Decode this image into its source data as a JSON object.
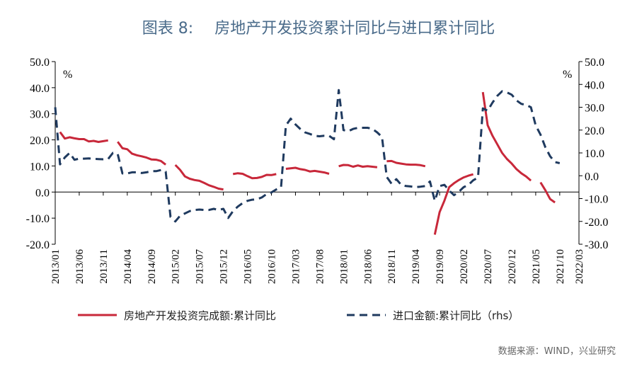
{
  "header": {
    "figure_no": "图表 8:",
    "title": "房地产开发投资累计同比与进口累计同比"
  },
  "source": "数据来源：WIND，兴业研究",
  "colors": {
    "series1": "#c8283a",
    "series2": "#1f3a5f"
  },
  "chart_data": {
    "type": "line",
    "title": "房地产开发投资累计同比与进口累计同比",
    "x_tick_labels": [
      "2013/01",
      "2013/06",
      "2013/11",
      "2014/04",
      "2014/09",
      "2015/02",
      "2015/07",
      "2015/12",
      "2016/05",
      "2016/10",
      "2017/03",
      "2017/08",
      "2018/01",
      "2018/06",
      "2018/11",
      "2019/04",
      "2019/09",
      "2020/02",
      "2020/07",
      "2020/12",
      "2021/05",
      "2021/10",
      "2022/03"
    ],
    "left_axis": {
      "unit": "%",
      "ylim": [
        -20,
        50
      ],
      "ticks": [
        "50.0",
        "40.0",
        "30.0",
        "20.0",
        "10.0",
        "0.0",
        "-10.0",
        "-20.0"
      ]
    },
    "right_axis": {
      "unit": "%",
      "ylim": [
        -30,
        50
      ],
      "ticks": [
        "50.0",
        "40.0",
        "30.0",
        "20.0",
        "10.0",
        "0.0",
        "-10.0",
        "-20.0",
        "-30.0"
      ]
    },
    "series": [
      {
        "name": "房地产开发投资完成额:累计同比",
        "axis": "left",
        "style": "solid",
        "data": [
          [
            0,
            null
          ],
          [
            1,
            23.0
          ],
          [
            2,
            20.5
          ],
          [
            3,
            21.0
          ],
          [
            4,
            20.6
          ],
          [
            5,
            20.3
          ],
          [
            6,
            20.3
          ],
          [
            7,
            19.4
          ],
          [
            8,
            19.6
          ],
          [
            9,
            19.2
          ],
          [
            10,
            19.5
          ],
          [
            11,
            19.8
          ],
          [
            12,
            null
          ],
          [
            13,
            19.3
          ],
          [
            14,
            16.8
          ],
          [
            15,
            16.4
          ],
          [
            16,
            14.7
          ],
          [
            17,
            14.1
          ],
          [
            18,
            13.7
          ],
          [
            19,
            13.2
          ],
          [
            20,
            12.5
          ],
          [
            21,
            12.4
          ],
          [
            22,
            11.9
          ],
          [
            23,
            10.5
          ],
          [
            24,
            null
          ],
          [
            25,
            10.4
          ],
          [
            26,
            8.5
          ],
          [
            27,
            6.0
          ],
          [
            28,
            5.1
          ],
          [
            29,
            4.6
          ],
          [
            30,
            4.3
          ],
          [
            31,
            3.5
          ],
          [
            32,
            2.6
          ],
          [
            33,
            2.0
          ],
          [
            34,
            1.3
          ],
          [
            35,
            1.0
          ],
          [
            36,
            null
          ],
          [
            37,
            6.9
          ],
          [
            38,
            7.2
          ],
          [
            39,
            7.0
          ],
          [
            40,
            6.1
          ],
          [
            41,
            5.3
          ],
          [
            42,
            5.4
          ],
          [
            43,
            5.8
          ],
          [
            44,
            6.6
          ],
          [
            45,
            6.5
          ],
          [
            46,
            6.9
          ],
          [
            47,
            null
          ],
          [
            48,
            8.9
          ],
          [
            49,
            9.1
          ],
          [
            50,
            9.3
          ],
          [
            51,
            8.8
          ],
          [
            52,
            8.5
          ],
          [
            53,
            7.9
          ],
          [
            54,
            8.1
          ],
          [
            55,
            7.8
          ],
          [
            56,
            7.5
          ],
          [
            57,
            7.0
          ],
          [
            58,
            null
          ],
          [
            59,
            9.9
          ],
          [
            60,
            10.4
          ],
          [
            61,
            10.3
          ],
          [
            62,
            9.7
          ],
          [
            63,
            10.2
          ],
          [
            64,
            9.7
          ],
          [
            65,
            9.9
          ],
          [
            66,
            9.7
          ],
          [
            67,
            9.5
          ],
          [
            68,
            null
          ],
          [
            69,
            11.8
          ],
          [
            70,
            11.9
          ],
          [
            71,
            11.2
          ],
          [
            72,
            10.9
          ],
          [
            73,
            10.6
          ],
          [
            74,
            10.5
          ],
          [
            75,
            10.5
          ],
          [
            76,
            10.3
          ],
          [
            77,
            9.9
          ],
          [
            78,
            null
          ],
          [
            79,
            -16.3
          ],
          [
            80,
            -7.7
          ],
          [
            81,
            -3.3
          ],
          [
            82,
            1.9
          ],
          [
            83,
            3.4
          ],
          [
            84,
            4.6
          ],
          [
            85,
            5.6
          ],
          [
            86,
            6.3
          ],
          [
            87,
            6.8
          ],
          [
            88,
            null
          ],
          [
            89,
            38.3
          ],
          [
            90,
            25.6
          ],
          [
            91,
            21.6
          ],
          [
            92,
            18.3
          ],
          [
            93,
            15.0
          ],
          [
            94,
            12.7
          ],
          [
            95,
            10.9
          ],
          [
            96,
            8.8
          ],
          [
            97,
            7.2
          ],
          [
            98,
            6.0
          ],
          [
            99,
            4.4
          ],
          [
            100,
            null
          ],
          [
            101,
            3.7
          ],
          [
            102,
            0.7
          ],
          [
            103,
            -2.7
          ],
          [
            104,
            -4.0
          ]
        ]
      },
      {
        "name": "进口金额:累计同比（rhs）",
        "axis": "right",
        "style": "dashed",
        "data": [
          [
            0,
            30.0
          ],
          [
            1,
            5.0
          ],
          [
            2,
            8.0
          ],
          [
            3,
            10.0
          ],
          [
            4,
            7.0
          ],
          [
            5,
            7.5
          ],
          [
            6,
            7.5
          ],
          [
            7,
            7.6
          ],
          [
            8,
            7.4
          ],
          [
            9,
            7.3
          ],
          [
            10,
            7.2
          ],
          [
            11,
            7.3
          ],
          [
            12,
            10.0
          ],
          [
            13,
            9.5
          ],
          [
            14,
            1.0
          ],
          [
            15,
            1.0
          ],
          [
            16,
            1.5
          ],
          [
            17,
            1.5
          ],
          [
            18,
            1.2
          ],
          [
            19,
            1.5
          ],
          [
            20,
            2.0
          ],
          [
            21,
            2.0
          ],
          [
            22,
            2.5
          ],
          [
            23,
            1.8
          ],
          [
            24,
            -18.0
          ],
          [
            25,
            -20.0
          ],
          [
            26,
            -17.5
          ],
          [
            27,
            -16.5
          ],
          [
            28,
            -15.5
          ],
          [
            29,
            -15.0
          ],
          [
            30,
            -14.8
          ],
          [
            31,
            -15.0
          ],
          [
            32,
            -15.0
          ],
          [
            33,
            -14.5
          ],
          [
            34,
            -15.0
          ],
          [
            35,
            -14.5
          ],
          [
            36,
            -18.5
          ],
          [
            37,
            -15.5
          ],
          [
            38,
            -13.5
          ],
          [
            39,
            -12.0
          ],
          [
            40,
            -11.0
          ],
          [
            41,
            -10.5
          ],
          [
            42,
            -10.3
          ],
          [
            43,
            -9.5
          ],
          [
            44,
            -8.0
          ],
          [
            45,
            -7.3
          ],
          [
            46,
            -6.0
          ],
          [
            47,
            -5.0
          ],
          [
            48,
            22.0
          ],
          [
            49,
            25.0
          ],
          [
            50,
            22.5
          ],
          [
            51,
            20.5
          ],
          [
            52,
            19.0
          ],
          [
            53,
            18.3
          ],
          [
            54,
            17.5
          ],
          [
            55,
            17.3
          ],
          [
            56,
            17.5
          ],
          [
            57,
            17.5
          ],
          [
            58,
            16.0
          ],
          [
            59,
            37.5
          ],
          [
            60,
            20.0
          ],
          [
            61,
            19.5
          ],
          [
            62,
            20.5
          ],
          [
            63,
            21.0
          ],
          [
            64,
            21.0
          ],
          [
            65,
            21.0
          ],
          [
            66,
            20.5
          ],
          [
            67,
            19.0
          ],
          [
            68,
            17.0
          ],
          [
            69,
            -0.5
          ],
          [
            70,
            -3.5
          ],
          [
            71,
            -1.5
          ],
          [
            72,
            -4.0
          ],
          [
            73,
            -4.5
          ],
          [
            74,
            -4.7
          ],
          [
            75,
            -5.0
          ],
          [
            76,
            -4.8
          ],
          [
            77,
            -4.5
          ],
          [
            78,
            -2.5
          ],
          [
            79,
            -11.0
          ],
          [
            80,
            -4.5
          ],
          [
            81,
            -4.0
          ],
          [
            82,
            -6.5
          ],
          [
            83,
            -8.5
          ],
          [
            84,
            -7.0
          ],
          [
            85,
            -5.0
          ],
          [
            86,
            -4.0
          ],
          [
            87,
            -2.0
          ],
          [
            88,
            -0.8
          ],
          [
            89,
            29.5
          ],
          [
            90,
            28.5
          ],
          [
            91,
            32.0
          ],
          [
            92,
            35.0
          ],
          [
            93,
            37.0
          ],
          [
            94,
            36.5
          ],
          [
            95,
            35.5
          ],
          [
            96,
            33.0
          ],
          [
            97,
            31.5
          ],
          [
            98,
            31.0
          ],
          [
            99,
            30.0
          ],
          [
            100,
            22.0
          ],
          [
            101,
            18.0
          ],
          [
            102,
            12.5
          ],
          [
            103,
            8.5
          ],
          [
            104,
            6.0
          ],
          [
            105,
            5.5
          ]
        ]
      }
    ],
    "x_domain": [
      0,
      109
    ],
    "x_tick_indices": [
      0,
      5,
      10,
      15,
      20,
      25,
      30,
      35,
      40,
      45,
      50,
      55,
      60,
      65,
      70,
      75,
      80,
      85,
      90,
      95,
      100,
      105,
      109
    ],
    "legend": [
      "房地产开发投资完成额:累计同比",
      "进口金额:累计同比（rhs）"
    ]
  }
}
